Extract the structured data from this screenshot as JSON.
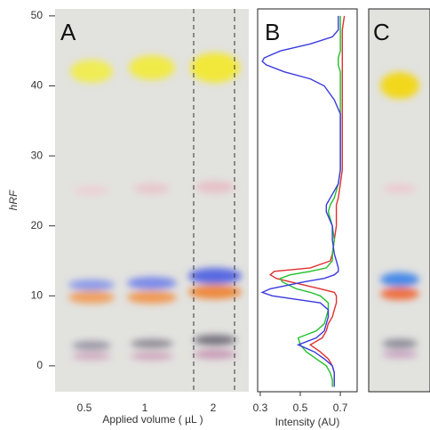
{
  "chart_data": [
    {
      "type": "plate",
      "panel": "A",
      "ylabel": "hRF",
      "xlabel": "Applied volume ( µL )",
      "categories": [
        "0.5",
        "1",
        "2"
      ],
      "ylim": [
        -3.7,
        51
      ],
      "yticks": [
        0,
        10,
        20,
        30,
        40,
        50
      ]
    },
    {
      "type": "line",
      "panel": "B",
      "xlabel": "Intensity (AU)",
      "x": [
        -3,
        -2,
        -1,
        0,
        1,
        2,
        3,
        4,
        5,
        6,
        7,
        8,
        9,
        10,
        10.5,
        11,
        12,
        12.5,
        13,
        13.5,
        14,
        15,
        16,
        18,
        20,
        22,
        23,
        24,
        26,
        28,
        30,
        32,
        34,
        36,
        38,
        40,
        41,
        42,
        43,
        43.5,
        44,
        45,
        46,
        47,
        48,
        50
      ],
      "xlim": [
        0.287,
        0.784
      ],
      "xticks": [
        0.3,
        0.5,
        0.7
      ],
      "series": [
        {
          "color": "#e03030",
          "values": [
            0.67,
            0.67,
            0.67,
            0.66,
            0.64,
            0.6,
            0.55,
            0.61,
            0.63,
            0.64,
            0.66,
            0.67,
            0.68,
            0.68,
            0.67,
            0.6,
            0.45,
            0.38,
            0.35,
            0.37,
            0.55,
            0.65,
            0.66,
            0.67,
            0.68,
            0.68,
            0.68,
            0.69,
            0.7,
            0.71,
            0.71,
            0.71,
            0.71,
            0.71,
            0.71,
            0.71,
            0.71,
            0.71,
            0.71,
            0.71,
            0.71,
            0.71,
            0.71,
            0.71,
            0.71,
            0.72
          ]
        },
        {
          "color": "#22c02a",
          "values": [
            0.66,
            0.66,
            0.65,
            0.63,
            0.58,
            0.53,
            0.5,
            0.49,
            0.58,
            0.62,
            0.63,
            0.64,
            0.64,
            0.6,
            0.55,
            0.48,
            0.41,
            0.4,
            0.45,
            0.55,
            0.63,
            0.66,
            0.66,
            0.67,
            0.66,
            0.64,
            0.65,
            0.67,
            0.69,
            0.7,
            0.7,
            0.7,
            0.7,
            0.7,
            0.7,
            0.7,
            0.7,
            0.7,
            0.69,
            0.69,
            0.69,
            0.7,
            0.7,
            0.7,
            0.7,
            0.7
          ]
        },
        {
          "color": "#3a3ae0",
          "values": [
            0.67,
            0.67,
            0.67,
            0.66,
            0.62,
            0.57,
            0.49,
            0.58,
            0.62,
            0.63,
            0.64,
            0.64,
            0.6,
            0.36,
            0.31,
            0.35,
            0.52,
            0.62,
            0.67,
            0.69,
            0.69,
            0.68,
            0.67,
            0.66,
            0.66,
            0.63,
            0.63,
            0.65,
            0.69,
            0.7,
            0.7,
            0.7,
            0.7,
            0.7,
            0.67,
            0.62,
            0.55,
            0.42,
            0.33,
            0.31,
            0.32,
            0.4,
            0.55,
            0.66,
            0.69,
            0.69
          ]
        }
      ]
    },
    {
      "type": "plate",
      "panel": "C"
    }
  ]
}
